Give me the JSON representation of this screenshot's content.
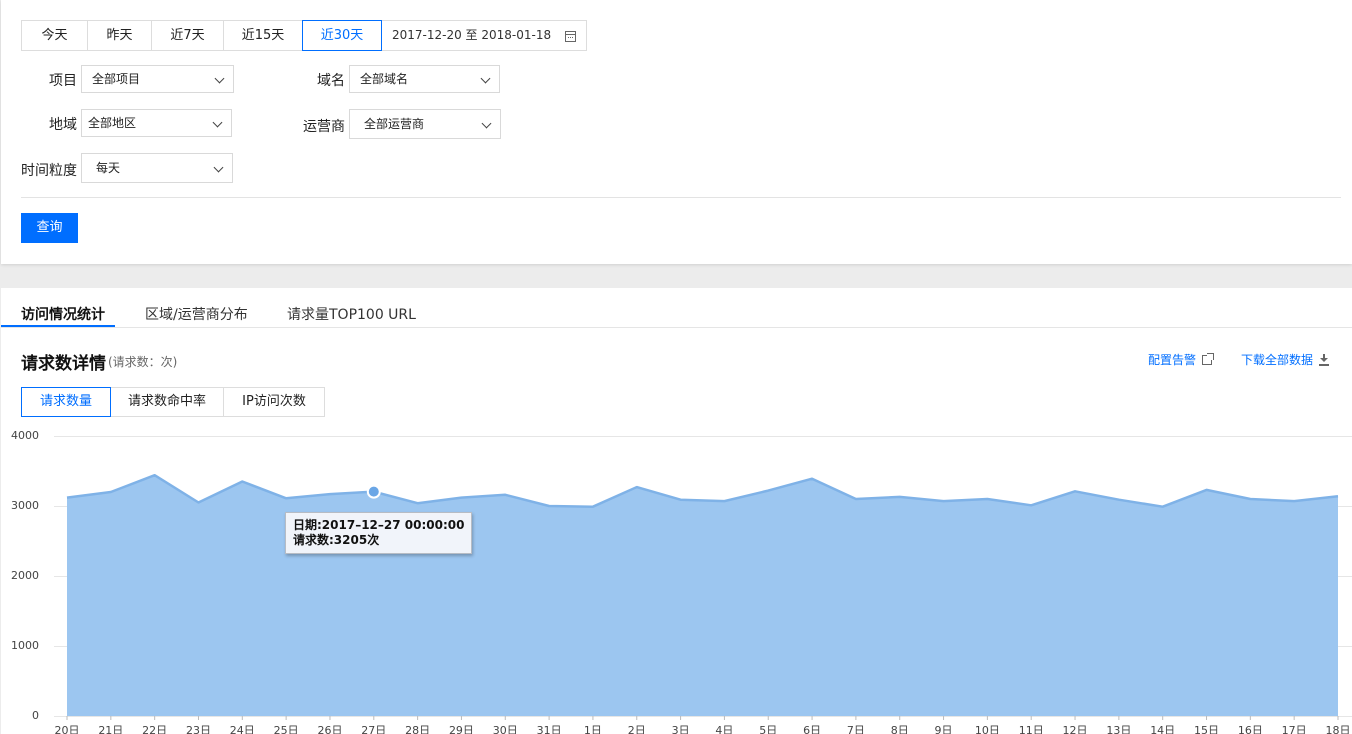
{
  "filters": {
    "ranges": [
      "今天",
      "昨天",
      "近7天",
      "近15天",
      "近30天"
    ],
    "active_range": "近30天",
    "date_range": "2017-12-20 至 2018-01-18",
    "project_label": "项目",
    "project_value": "全部项目",
    "domain_label": "域名",
    "domain_value": "全部域名",
    "region_label": "地域",
    "region_value": "全部地区",
    "isp_label": "运营商",
    "isp_value": "全部运营商",
    "granularity_label": "时间粒度",
    "granularity_value": "每天",
    "query_label": "查询"
  },
  "tabs": [
    "访问情况统计",
    "区域/运营商分布",
    "请求量TOP100 URL"
  ],
  "section": {
    "title": "请求数详情",
    "subtitle": "(请求数：次)",
    "alert_link": "配置告警",
    "download_link": "下载全部数据"
  },
  "metrics": [
    "请求数量",
    "请求数命中率",
    "IP访问次数"
  ],
  "tooltip": {
    "line1": "日期:2017–12–27 00:00:00",
    "line2": "请求数:3205次"
  },
  "chart_data": {
    "type": "area",
    "categories": [
      "20日",
      "21日",
      "22日",
      "23日",
      "24日",
      "25日",
      "26日",
      "27日",
      "28日",
      "29日",
      "30日",
      "31日",
      "1日",
      "2日",
      "3日",
      "4日",
      "5日",
      "6日",
      "7日",
      "8日",
      "9日",
      "10日",
      "11日",
      "12日",
      "13日",
      "14日",
      "15日",
      "16日",
      "17日",
      "18日"
    ],
    "values": [
      3120,
      3200,
      3440,
      3050,
      3350,
      3110,
      3170,
      3205,
      3040,
      3120,
      3160,
      3000,
      2990,
      3270,
      3090,
      3070,
      3220,
      3390,
      3100,
      3130,
      3070,
      3100,
      3010,
      3210,
      3090,
      2990,
      3230,
      3100,
      3070,
      3140
    ],
    "y_ticks": [
      "4000",
      "3000",
      "2000",
      "1000",
      "0"
    ],
    "ylim": [
      0,
      4000
    ],
    "grid": true,
    "highlight_index": 7,
    "fill_color": "#9cc6f0",
    "line_color": "#7fb2e7"
  }
}
